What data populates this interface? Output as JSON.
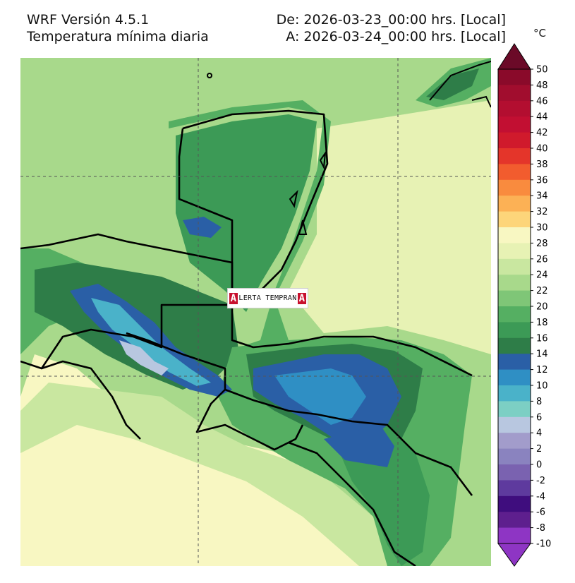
{
  "header": {
    "model": "WRF Versión 4.5.1",
    "variable": "Temperatura mínima diaria",
    "from": "De: 2026-03-23_00:00 hrs. [Local]",
    "to": "A: 2026-03-24_00:00 hrs. [Local]"
  },
  "colorbar": {
    "unit": "°C",
    "levels": [
      50,
      48,
      46,
      44,
      42,
      40,
      38,
      36,
      34,
      32,
      30,
      28,
      26,
      24,
      22,
      20,
      18,
      16,
      14,
      12,
      10,
      8,
      6,
      4,
      2,
      0,
      -2,
      -4,
      -6,
      -8,
      -10
    ],
    "colors": [
      "#6b0a28",
      "#8a0a2a",
      "#a10d2e",
      "#b30e30",
      "#c20f32",
      "#d01a2c",
      "#e4352a",
      "#f25c2e",
      "#f98b3e",
      "#fcb155",
      "#fdd57a",
      "#f8f7c2",
      "#e7f2b4",
      "#c9e7a0",
      "#a8d98b",
      "#7fc677",
      "#55af62",
      "#3c9a56",
      "#2e7d48",
      "#2a5fa6",
      "#2f8fc4",
      "#4ab2c9",
      "#7ccfc4",
      "#b8c7e0",
      "#a29ccb",
      "#8a83bf",
      "#7a62b0",
      "#5e3a9e",
      "#3f0d7e",
      "#5e1f8e",
      "#8e35c4"
    ]
  },
  "logo": {
    "lead": "A",
    "text": "LERTA TEMPRAN",
    "tail": "A"
  }
}
